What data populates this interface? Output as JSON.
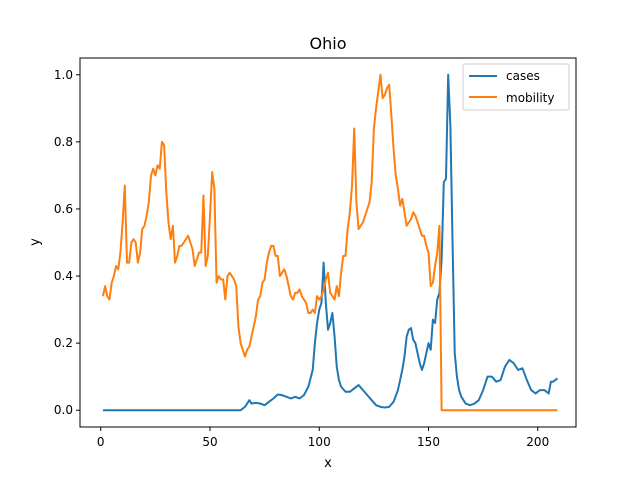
{
  "chart_data": {
    "type": "line",
    "title": "Ohio",
    "xlabel": "x",
    "ylabel": "y",
    "xlim": [
      -9.5,
      217.5
    ],
    "ylim": [
      -0.05,
      1.05
    ],
    "xticks": [
      0,
      50,
      100,
      150,
      200
    ],
    "yticks": [
      0.0,
      0.2,
      0.4,
      0.6,
      0.8,
      1.0
    ],
    "xtick_labels": [
      "0",
      "50",
      "100",
      "150",
      "200"
    ],
    "ytick_labels": [
      "0.0",
      "0.2",
      "0.4",
      "0.6",
      "0.8",
      "1.0"
    ],
    "grid": false,
    "legend_position": "upper right",
    "series": [
      {
        "name": "cases",
        "color": "#1f77b4",
        "points": [
          [
            1,
            0
          ],
          [
            20,
            0
          ],
          [
            40,
            0
          ],
          [
            60,
            0
          ],
          [
            64,
            0
          ],
          [
            66,
            0.01
          ],
          [
            68,
            0.03
          ],
          [
            69,
            0.02
          ],
          [
            71,
            0.022
          ],
          [
            73,
            0.02
          ],
          [
            75,
            0.015
          ],
          [
            77,
            0.025
          ],
          [
            79,
            0.035
          ],
          [
            81,
            0.047
          ],
          [
            83,
            0.045
          ],
          [
            85,
            0.04
          ],
          [
            87,
            0.035
          ],
          [
            89,
            0.04
          ],
          [
            91,
            0.035
          ],
          [
            93,
            0.045
          ],
          [
            95,
            0.07
          ],
          [
            97,
            0.12
          ],
          [
            98,
            0.2
          ],
          [
            99,
            0.26
          ],
          [
            100,
            0.3
          ],
          [
            101,
            0.32
          ],
          [
            102,
            0.44
          ],
          [
            103,
            0.32
          ],
          [
            104,
            0.24
          ],
          [
            105,
            0.26
          ],
          [
            106,
            0.29
          ],
          [
            107,
            0.22
          ],
          [
            108,
            0.13
          ],
          [
            109,
            0.09
          ],
          [
            110,
            0.07
          ],
          [
            112,
            0.055
          ],
          [
            114,
            0.055
          ],
          [
            116,
            0.065
          ],
          [
            118,
            0.075
          ],
          [
            120,
            0.06
          ],
          [
            122,
            0.045
          ],
          [
            124,
            0.03
          ],
          [
            126,
            0.015
          ],
          [
            128,
            0.01
          ],
          [
            130,
            0.008
          ],
          [
            132,
            0.01
          ],
          [
            134,
            0.025
          ],
          [
            136,
            0.06
          ],
          [
            138,
            0.12
          ],
          [
            139,
            0.16
          ],
          [
            140,
            0.22
          ],
          [
            141,
            0.24
          ],
          [
            142,
            0.245
          ],
          [
            143,
            0.21
          ],
          [
            144,
            0.2
          ],
          [
            145,
            0.17
          ],
          [
            146,
            0.14
          ],
          [
            147,
            0.12
          ],
          [
            148,
            0.14
          ],
          [
            149,
            0.17
          ],
          [
            150,
            0.2
          ],
          [
            151,
            0.18
          ],
          [
            152,
            0.27
          ],
          [
            153,
            0.26
          ],
          [
            154,
            0.33
          ],
          [
            155,
            0.35
          ],
          [
            156,
            0.45
          ],
          [
            157,
            0.68
          ],
          [
            158,
            0.69
          ],
          [
            159,
            1.0
          ],
          [
            160,
            0.85
          ],
          [
            161,
            0.5
          ],
          [
            162,
            0.17
          ],
          [
            163,
            0.1
          ],
          [
            164,
            0.06
          ],
          [
            165,
            0.04
          ],
          [
            167,
            0.02
          ],
          [
            169,
            0.015
          ],
          [
            171,
            0.02
          ],
          [
            173,
            0.03
          ],
          [
            175,
            0.06
          ],
          [
            177,
            0.1
          ],
          [
            179,
            0.1
          ],
          [
            181,
            0.085
          ],
          [
            183,
            0.09
          ],
          [
            185,
            0.13
          ],
          [
            187,
            0.15
          ],
          [
            189,
            0.14
          ],
          [
            191,
            0.12
          ],
          [
            193,
            0.125
          ],
          [
            195,
            0.09
          ],
          [
            197,
            0.06
          ],
          [
            199,
            0.05
          ],
          [
            201,
            0.06
          ],
          [
            203,
            0.06
          ],
          [
            205,
            0.05
          ],
          [
            206,
            0.085
          ],
          [
            207,
            0.085
          ],
          [
            208,
            0.09
          ],
          [
            209,
            0.095
          ]
        ]
      },
      {
        "name": "mobility",
        "color": "#ff7f0e",
        "points": [
          [
            1,
            0.34
          ],
          [
            2,
            0.37
          ],
          [
            3,
            0.34
          ],
          [
            4,
            0.33
          ],
          [
            5,
            0.38
          ],
          [
            6,
            0.4
          ],
          [
            7,
            0.43
          ],
          [
            8,
            0.42
          ],
          [
            9,
            0.47
          ],
          [
            10,
            0.56
          ],
          [
            11,
            0.67
          ],
          [
            12,
            0.44
          ],
          [
            13,
            0.44
          ],
          [
            14,
            0.5
          ],
          [
            15,
            0.51
          ],
          [
            16,
            0.5
          ],
          [
            17,
            0.44
          ],
          [
            18,
            0.47
          ],
          [
            19,
            0.54
          ],
          [
            20,
            0.55
          ],
          [
            21,
            0.58
          ],
          [
            22,
            0.62
          ],
          [
            23,
            0.7
          ],
          [
            24,
            0.72
          ],
          [
            25,
            0.7
          ],
          [
            26,
            0.73
          ],
          [
            27,
            0.72
          ],
          [
            28,
            0.8
          ],
          [
            29,
            0.79
          ],
          [
            30,
            0.65
          ],
          [
            31,
            0.56
          ],
          [
            32,
            0.51
          ],
          [
            33,
            0.55
          ],
          [
            34,
            0.44
          ],
          [
            35,
            0.46
          ],
          [
            36,
            0.49
          ],
          [
            37,
            0.49
          ],
          [
            38,
            0.5
          ],
          [
            39,
            0.51
          ],
          [
            40,
            0.52
          ],
          [
            41,
            0.5
          ],
          [
            42,
            0.48
          ],
          [
            43,
            0.43
          ],
          [
            44,
            0.45
          ],
          [
            45,
            0.47
          ],
          [
            46,
            0.47
          ],
          [
            47,
            0.64
          ],
          [
            48,
            0.43
          ],
          [
            49,
            0.46
          ],
          [
            50,
            0.58
          ],
          [
            51,
            0.71
          ],
          [
            52,
            0.66
          ],
          [
            53,
            0.38
          ],
          [
            54,
            0.4
          ],
          [
            55,
            0.39
          ],
          [
            56,
            0.39
          ],
          [
            57,
            0.33
          ],
          [
            58,
            0.4
          ],
          [
            59,
            0.41
          ],
          [
            60,
            0.4
          ],
          [
            61,
            0.39
          ],
          [
            62,
            0.37
          ],
          [
            63,
            0.25
          ],
          [
            64,
            0.2
          ],
          [
            65,
            0.18
          ],
          [
            66,
            0.16
          ],
          [
            67,
            0.18
          ],
          [
            68,
            0.19
          ],
          [
            69,
            0.22
          ],
          [
            70,
            0.25
          ],
          [
            71,
            0.28
          ],
          [
            72,
            0.33
          ],
          [
            73,
            0.34
          ],
          [
            74,
            0.38
          ],
          [
            75,
            0.39
          ],
          [
            76,
            0.44
          ],
          [
            77,
            0.47
          ],
          [
            78,
            0.49
          ],
          [
            79,
            0.49
          ],
          [
            80,
            0.46
          ],
          [
            81,
            0.46
          ],
          [
            82,
            0.4
          ],
          [
            83,
            0.41
          ],
          [
            84,
            0.42
          ],
          [
            85,
            0.4
          ],
          [
            86,
            0.37
          ],
          [
            87,
            0.34
          ],
          [
            88,
            0.33
          ],
          [
            89,
            0.35
          ],
          [
            90,
            0.35
          ],
          [
            91,
            0.36
          ],
          [
            92,
            0.34
          ],
          [
            93,
            0.33
          ],
          [
            94,
            0.32
          ],
          [
            95,
            0.29
          ],
          [
            96,
            0.29
          ],
          [
            97,
            0.3
          ],
          [
            98,
            0.29
          ],
          [
            99,
            0.34
          ],
          [
            100,
            0.33
          ],
          [
            101,
            0.34
          ],
          [
            102,
            0.36
          ],
          [
            103,
            0.39
          ],
          [
            104,
            0.41
          ],
          [
            105,
            0.35
          ],
          [
            106,
            0.34
          ],
          [
            107,
            0.33
          ],
          [
            108,
            0.37
          ],
          [
            109,
            0.34
          ],
          [
            110,
            0.41
          ],
          [
            111,
            0.46
          ],
          [
            112,
            0.46
          ],
          [
            113,
            0.54
          ],
          [
            114,
            0.59
          ],
          [
            115,
            0.67
          ],
          [
            116,
            0.84
          ],
          [
            117,
            0.62
          ],
          [
            118,
            0.54
          ],
          [
            119,
            0.55
          ],
          [
            120,
            0.56
          ],
          [
            121,
            0.58
          ],
          [
            122,
            0.6
          ],
          [
            123,
            0.62
          ],
          [
            124,
            0.68
          ],
          [
            125,
            0.84
          ],
          [
            126,
            0.9
          ],
          [
            127,
            0.95
          ],
          [
            128,
            1.0
          ],
          [
            129,
            0.93
          ],
          [
            130,
            0.94
          ],
          [
            131,
            0.96
          ],
          [
            132,
            0.97
          ],
          [
            133,
            0.88
          ],
          [
            134,
            0.78
          ],
          [
            135,
            0.7
          ],
          [
            136,
            0.66
          ],
          [
            137,
            0.61
          ],
          [
            138,
            0.63
          ],
          [
            139,
            0.59
          ],
          [
            140,
            0.55
          ],
          [
            141,
            0.56
          ],
          [
            142,
            0.57
          ],
          [
            143,
            0.59
          ],
          [
            144,
            0.58
          ],
          [
            145,
            0.56
          ],
          [
            146,
            0.54
          ],
          [
            147,
            0.52
          ],
          [
            148,
            0.52
          ],
          [
            149,
            0.49
          ],
          [
            150,
            0.47
          ],
          [
            151,
            0.37
          ],
          [
            152,
            0.38
          ],
          [
            153,
            0.43
          ],
          [
            154,
            0.47
          ],
          [
            155,
            0.55
          ],
          [
            156,
            0.0
          ],
          [
            160,
            0.0
          ],
          [
            170,
            0.0
          ],
          [
            180,
            0.0
          ],
          [
            190,
            0.0
          ],
          [
            200,
            0.0
          ],
          [
            209,
            0.0
          ]
        ]
      }
    ]
  }
}
